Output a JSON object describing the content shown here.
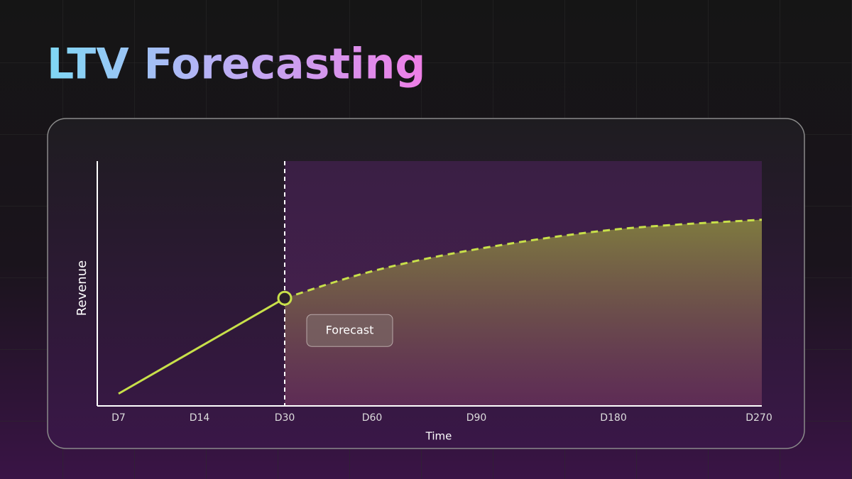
{
  "chart_data": {
    "type": "line",
    "title": "LTV Forecasting",
    "x_label": "Time",
    "y_label": "Revenue",
    "categories": [
      "D7",
      "D14",
      "D30",
      "D60",
      "D90",
      "D180",
      "D270"
    ],
    "ylim": [
      0,
      100
    ],
    "series": [
      {
        "color": "#c8e04a",
        "values": [
          5,
          24,
          44,
          null,
          null,
          null,
          null
        ]
      },
      {
        "name": "Forecast",
        "color": "#c8e04a",
        "dashed": true,
        "values": [
          null,
          null,
          44,
          55,
          64,
          72,
          76
        ]
      }
    ]
  }
}
